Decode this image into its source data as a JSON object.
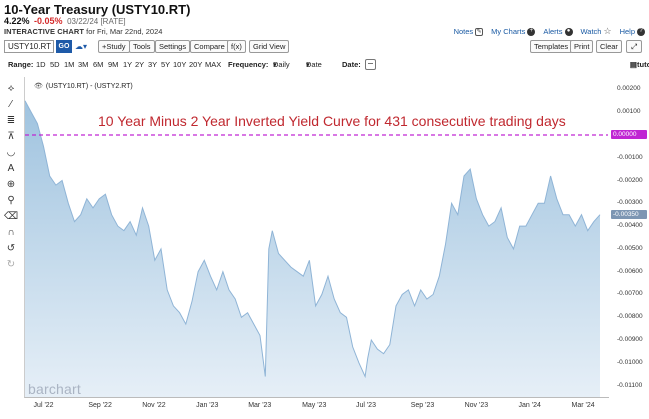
{
  "header": {
    "title": "10-Year Treasury (USTY10.RT)",
    "price": "4.22%",
    "change": "-0.05%",
    "date_label": "03/22/24 [RATE]",
    "chart_label": "INTERACTIVE CHART",
    "chart_for": "for Fri, Mar 22nd, 2024"
  },
  "top_links": {
    "notes": "Notes",
    "my_charts": "My Charts",
    "alerts": "Alerts",
    "watch": "Watch",
    "help": "Help"
  },
  "toolbar": {
    "symbol_value": "USTY10.RT",
    "go_label": "GO",
    "study_label": "+Study",
    "tools_label": "Tools",
    "settings_label": "Settings",
    "compare_label": "Compare",
    "fx_label": "f(x)",
    "grid_view_label": "Grid View",
    "templates_label": "Templates",
    "print_label": "Print",
    "clear_label": "Clear"
  },
  "range_bar": {
    "range_label": "Range:",
    "ranges": [
      "1D",
      "5D",
      "1M",
      "3M",
      "6M",
      "9M",
      "1Y",
      "2Y",
      "3Y",
      "5Y",
      "10Y",
      "20Y",
      "MAX"
    ],
    "frequency_label": "Frequency:",
    "frequency_value": "Daily",
    "date_select": "Date",
    "date_label": "Date:",
    "tutorial_label": "tutorial"
  },
  "legend": {
    "series_label": "(USTY10.RT) - (USTY2.RT)"
  },
  "annotation": "10 Year Minus 2 Year Inverted Yield Curve for 431 consecutive trading days",
  "watermark": "barchart",
  "colors": {
    "area_fill_top": "#9fc3df",
    "area_fill_bottom": "#e6eff7",
    "area_stroke": "#8fb4d6",
    "dashed_line": "#c026d3",
    "annotation_text": "#c0282f",
    "zero_tag": "#c026d3",
    "last_tag": "#7d96b3"
  },
  "chart_data": {
    "type": "area",
    "ylim": [
      -0.0115,
      0.0025
    ],
    "y_ticks": [
      "0.00200",
      "0.00100",
      "0.00000",
      "-0.00100",
      "-0.00200",
      "-0.00300",
      "-0.00400",
      "-0.00500",
      "-0.00600",
      "-0.00700",
      "-0.00800",
      "-0.00900",
      "-0.01000",
      "-0.01100"
    ],
    "x_ticks": [
      "Jul '22",
      "Sep '22",
      "Nov '22",
      "Jan '23",
      "Mar '23",
      "May '23",
      "Jul '23",
      "Sep '23",
      "Nov '23",
      "Jan '24",
      "Mar '24"
    ],
    "reference_line": {
      "value": 0.0,
      "label": "0.00000"
    },
    "last_value_label": "-0.00350",
    "x": [
      "2022-06-10",
      "2022-06-17",
      "2022-06-24",
      "2022-07-01",
      "2022-07-08",
      "2022-07-15",
      "2022-07-22",
      "2022-07-29",
      "2022-08-05",
      "2022-08-12",
      "2022-08-19",
      "2022-08-26",
      "2022-09-02",
      "2022-09-09",
      "2022-09-16",
      "2022-09-23",
      "2022-09-30",
      "2022-10-07",
      "2022-10-14",
      "2022-10-21",
      "2022-10-28",
      "2022-11-04",
      "2022-11-11",
      "2022-11-18",
      "2022-11-25",
      "2022-12-02",
      "2022-12-09",
      "2022-12-16",
      "2022-12-23",
      "2022-12-30",
      "2023-01-06",
      "2023-01-13",
      "2023-01-20",
      "2023-01-27",
      "2023-02-03",
      "2023-02-10",
      "2023-02-17",
      "2023-02-24",
      "2023-03-03",
      "2023-03-09",
      "2023-03-13",
      "2023-03-17",
      "2023-03-24",
      "2023-03-31",
      "2023-04-07",
      "2023-04-14",
      "2023-04-21",
      "2023-04-28",
      "2023-05-05",
      "2023-05-12",
      "2023-05-19",
      "2023-05-26",
      "2023-06-02",
      "2023-06-09",
      "2023-06-16",
      "2023-06-23",
      "2023-06-30",
      "2023-07-03",
      "2023-07-07",
      "2023-07-14",
      "2023-07-21",
      "2023-07-28",
      "2023-08-04",
      "2023-08-11",
      "2023-08-18",
      "2023-08-25",
      "2023-09-01",
      "2023-09-08",
      "2023-09-15",
      "2023-09-22",
      "2023-09-29",
      "2023-10-06",
      "2023-10-13",
      "2023-10-20",
      "2023-10-27",
      "2023-11-03",
      "2023-11-10",
      "2023-11-17",
      "2023-11-24",
      "2023-12-01",
      "2023-12-08",
      "2023-12-15",
      "2023-12-22",
      "2023-12-29",
      "2024-01-05",
      "2024-01-12",
      "2024-01-19",
      "2024-01-26",
      "2024-02-02",
      "2024-02-09",
      "2024-02-16",
      "2024-02-23",
      "2024-03-01",
      "2024-03-08",
      "2024-03-15",
      "2024-03-22"
    ],
    "values": [
      0.0015,
      0.001,
      0.0005,
      -0.0005,
      -0.0018,
      -0.0022,
      -0.002,
      -0.003,
      -0.0038,
      -0.0035,
      -0.0028,
      -0.0032,
      -0.0028,
      -0.0026,
      -0.0035,
      -0.004,
      -0.0042,
      -0.0038,
      -0.0044,
      -0.0032,
      -0.004,
      -0.0055,
      -0.005,
      -0.0068,
      -0.0075,
      -0.0078,
      -0.0083,
      -0.0073,
      -0.006,
      -0.0055,
      -0.0062,
      -0.0068,
      -0.006,
      -0.0068,
      -0.0072,
      -0.008,
      -0.0078,
      -0.0083,
      -0.0088,
      -0.0106,
      -0.005,
      -0.0042,
      -0.0052,
      -0.0055,
      -0.0058,
      -0.006,
      -0.0062,
      -0.0055,
      -0.0075,
      -0.007,
      -0.0062,
      -0.0072,
      -0.0078,
      -0.008,
      -0.0093,
      -0.01,
      -0.0106,
      -0.0098,
      -0.009,
      -0.0094,
      -0.0096,
      -0.0092,
      -0.0075,
      -0.007,
      -0.0068,
      -0.0075,
      -0.0068,
      -0.0072,
      -0.007,
      -0.0062,
      -0.0048,
      -0.003,
      -0.0035,
      -0.0018,
      -0.0015,
      -0.0028,
      -0.0035,
      -0.004,
      -0.0038,
      -0.0032,
      -0.0045,
      -0.005,
      -0.004,
      -0.004,
      -0.0035,
      -0.003,
      -0.003,
      -0.0018,
      -0.0028,
      -0.0035,
      -0.0035,
      -0.004,
      -0.0035,
      -0.0042,
      -0.0038,
      -0.0035
    ]
  }
}
